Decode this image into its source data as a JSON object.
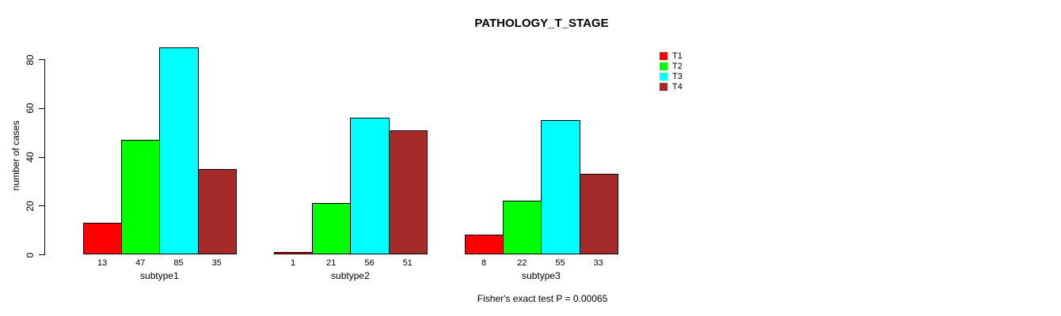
{
  "chart_data": {
    "type": "bar",
    "title": "PATHOLOGY_T_STAGE",
    "xlabel": "",
    "ylabel": "number of cases",
    "categories": [
      "subtype1",
      "subtype2",
      "subtype3"
    ],
    "series": [
      {
        "name": "T1",
        "color": "#FF0000",
        "values": [
          13,
          1,
          8
        ]
      },
      {
        "name": "T2",
        "color": "#00FF00",
        "values": [
          47,
          21,
          22
        ]
      },
      {
        "name": "T3",
        "color": "#00FFFF",
        "values": [
          85,
          56,
          55
        ]
      },
      {
        "name": "T4",
        "color": "#A52A2A",
        "values": [
          35,
          51,
          33
        ]
      }
    ],
    "yticks": [
      0,
      20,
      40,
      60,
      80
    ],
    "ylim": [
      0,
      85
    ],
    "grid": false,
    "bar_value_labels": true,
    "legend": {
      "position": "top-right",
      "entries": [
        "T1",
        "T2",
        "T3",
        "T4"
      ]
    },
    "annotation": "Fisher's exact test P = 0.00065",
    "background": "#FFFFFF"
  }
}
